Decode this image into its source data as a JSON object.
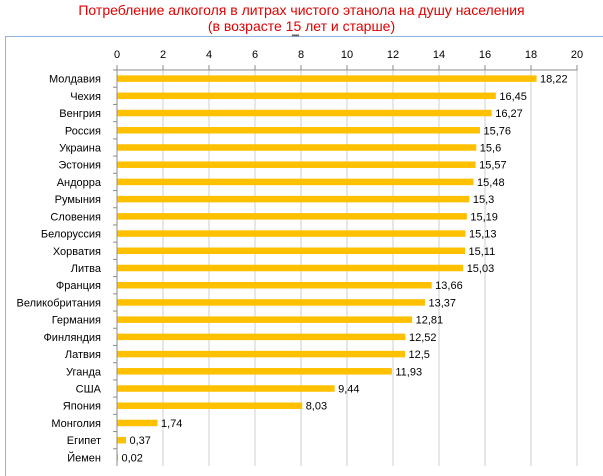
{
  "title_line1": "Потребление алкоголя в литрах чистого этанола на душу населения",
  "title_line2": "(в возрасте 15 лет и старше)",
  "chart_data": {
    "type": "bar",
    "orientation": "horizontal",
    "title": "Потребление алкоголя в литрах чистого этанола на душу населения (в возрасте 15 лет и старше)",
    "xlim": [
      0,
      20
    ],
    "xticks": [
      "0",
      "2",
      "4",
      "6",
      "8",
      "10",
      "12",
      "14",
      "16",
      "18",
      "20"
    ],
    "x_axis_position": "top",
    "grid": true,
    "legend": "none",
    "bar_color": "#ffc000",
    "categories": [
      "Молдавия",
      "Чехия",
      "Венгрия",
      "Россия",
      "Украина",
      "Эстония",
      "Андорра",
      "Румыния",
      "Словения",
      "Белоруссия",
      "Хорватия",
      "Литва",
      "Франция",
      "Великобритания",
      "Германия",
      "Финляндия",
      "Латвия",
      "Уганда",
      "США",
      "Япония",
      "Монголия",
      "Египет",
      "Йемен"
    ],
    "values": [
      18.22,
      16.45,
      16.27,
      15.76,
      15.6,
      15.57,
      15.48,
      15.3,
      15.19,
      15.13,
      15.11,
      15.03,
      13.66,
      13.37,
      12.81,
      12.52,
      12.5,
      11.93,
      9.44,
      8.03,
      1.74,
      0.37,
      0.02
    ],
    "value_labels": [
      "18,22",
      "16,45",
      "16,27",
      "15,76",
      "15,6",
      "15,57",
      "15,48",
      "15,3",
      "15,19",
      "15,13",
      "15,11",
      "15,03",
      "13,66",
      "13,37",
      "12,81",
      "12,52",
      "12,5",
      "11,93",
      "9,44",
      "8,03",
      "1,74",
      "0,37",
      "0,02"
    ]
  }
}
